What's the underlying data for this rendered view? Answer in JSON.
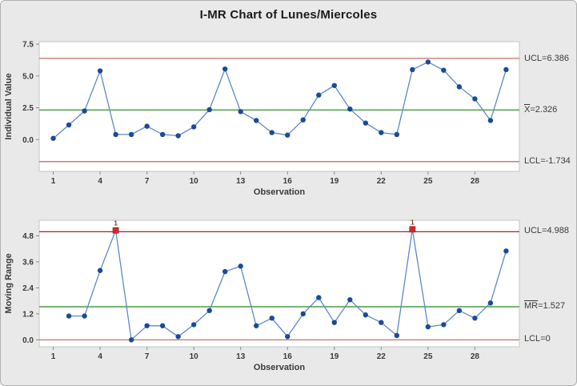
{
  "figure": {
    "title": "I-MR Chart of Lunes/Miercoles",
    "background": "#e9e9e9",
    "panel_background": "#ffffff"
  },
  "colors": {
    "series_line": "#5b8ac5",
    "marker": "#1b4a97",
    "limit_line": "#c0736c",
    "limit_line_strong": "#8f2c2c",
    "center_line": "#61a95f",
    "flag_marker": "#d42a2a",
    "flag_text": "#8b3a2a",
    "text": "#3a3a3a",
    "panel_border": "#c6c6c6"
  },
  "chart_data": [
    {
      "type": "line",
      "name": "individuals",
      "ylabel": "Individual Value",
      "xlabel": "Observation",
      "x": [
        1,
        2,
        3,
        4,
        5,
        6,
        7,
        8,
        9,
        10,
        11,
        12,
        13,
        14,
        15,
        16,
        17,
        18,
        19,
        20,
        21,
        22,
        23,
        24,
        25,
        26,
        27,
        28,
        29,
        30
      ],
      "values": [
        0.1,
        1.15,
        2.25,
        5.4,
        0.4,
        0.4,
        1.05,
        0.4,
        0.3,
        1.0,
        2.35,
        5.55,
        2.2,
        1.5,
        0.55,
        0.35,
        1.55,
        3.5,
        4.25,
        2.4,
        1.3,
        0.55,
        0.4,
        5.5,
        6.1,
        5.45,
        4.15,
        3.2,
        1.5,
        5.5
      ],
      "center": 2.326,
      "ucl": 6.386,
      "lcl": -1.734,
      "xticks": [
        1,
        4,
        7,
        10,
        13,
        16,
        19,
        22,
        25,
        28
      ],
      "ytick_labels": [
        "0.0",
        "2.5",
        "5.0",
        "7.5"
      ],
      "yticks": [
        0.0,
        2.5,
        5.0,
        7.5
      ],
      "xlim": [
        0.1,
        30.85
      ],
      "ylim": [
        -2.5,
        7.7
      ],
      "grid": false,
      "flags": [],
      "ucl_strong": false,
      "annotations": [
        {
          "prefix": "UCL",
          "rest": "=6.386",
          "bar": false
        },
        {
          "prefix": "X",
          "rest": "=2.326",
          "bar": true
        },
        {
          "prefix": "LCL",
          "rest": "=-1.734",
          "bar": false
        }
      ]
    },
    {
      "type": "line",
      "name": "moving-range",
      "ylabel": "Moving Range",
      "xlabel": "Observation",
      "x": [
        1,
        2,
        3,
        4,
        5,
        6,
        7,
        8,
        9,
        10,
        11,
        12,
        13,
        14,
        15,
        16,
        17,
        18,
        19,
        20,
        21,
        22,
        23,
        24,
        25,
        26,
        27,
        28,
        29,
        30
      ],
      "values": [
        null,
        1.1,
        1.1,
        3.2,
        5.05,
        0.0,
        0.65,
        0.65,
        0.15,
        0.7,
        1.35,
        3.15,
        3.4,
        0.65,
        1.0,
        0.15,
        1.2,
        1.95,
        0.8,
        1.85,
        1.15,
        0.8,
        0.2,
        5.1,
        0.6,
        0.7,
        1.35,
        1.0,
        1.7,
        4.1
      ],
      "center": 1.527,
      "ucl": 4.988,
      "lcl": 0,
      "xticks": [
        1,
        4,
        7,
        10,
        13,
        16,
        19,
        22,
        25,
        28
      ],
      "ytick_labels": [
        "0.0",
        "1.2",
        "2.4",
        "3.6",
        "4.8"
      ],
      "yticks": [
        0.0,
        1.2,
        2.4,
        3.6,
        4.8
      ],
      "xlim": [
        0.1,
        30.85
      ],
      "ylim": [
        -0.32,
        5.52
      ],
      "grid": false,
      "flags": [
        {
          "obs": 5,
          "label": "1"
        },
        {
          "obs": 24,
          "label": "1"
        }
      ],
      "ucl_strong": true,
      "annotations": [
        {
          "prefix": "UCL",
          "rest": "=4.988",
          "bar": false
        },
        {
          "prefix": "MR",
          "rest": "=1.527",
          "bar": true
        },
        {
          "prefix": "LCL",
          "rest": "=0",
          "bar": false
        }
      ]
    }
  ]
}
